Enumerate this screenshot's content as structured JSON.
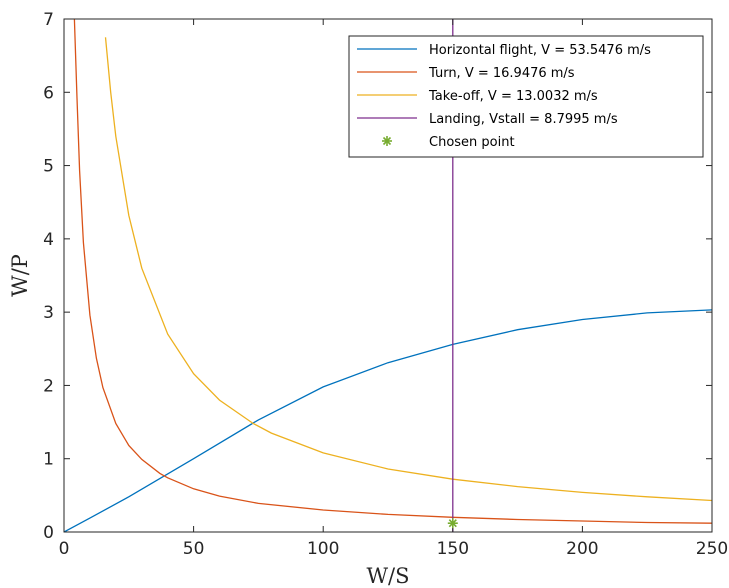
{
  "chart_data": {
    "type": "line",
    "xlabel": "W/S",
    "ylabel": "W/P",
    "xlim": [
      0,
      250
    ],
    "ylim": [
      0,
      7
    ],
    "xticks": [
      0,
      50,
      100,
      150,
      200,
      250
    ],
    "yticks": [
      0,
      1,
      2,
      3,
      4,
      5,
      6,
      7
    ],
    "grid": false,
    "legend_position": "top-right",
    "series": [
      {
        "name": "Horizontal flight, V = 53.5476 m/s",
        "color": "#0072BD",
        "kind": "line",
        "x": [
          0,
          10,
          25,
          50,
          75,
          100,
          125,
          150,
          175,
          200,
          225,
          250
        ],
        "y": [
          0.0,
          0.19,
          0.48,
          1.0,
          1.53,
          1.98,
          2.31,
          2.56,
          2.76,
          2.9,
          2.99,
          3.03
        ]
      },
      {
        "name": "Turn, V = 16.9476 m/s",
        "color": "#D95319",
        "kind": "line",
        "x": [
          4,
          5,
          6,
          7.5,
          10,
          12.5,
          15,
          20,
          25,
          30,
          37,
          40,
          50,
          60,
          75,
          100,
          125,
          150,
          175,
          200,
          225,
          250
        ],
        "y": [
          7.0,
          5.92,
          4.93,
          3.95,
          2.96,
          2.37,
          1.97,
          1.48,
          1.18,
          0.99,
          0.8,
          0.74,
          0.59,
          0.49,
          0.39,
          0.3,
          0.24,
          0.2,
          0.17,
          0.15,
          0.13,
          0.12
        ]
      },
      {
        "name": "Take-off, V = 13.0032 m/s",
        "color": "#EDB120",
        "kind": "line",
        "x": [
          16,
          18,
          20,
          25,
          30,
          40,
          50,
          60,
          73,
          80,
          100,
          125,
          150,
          175,
          200,
          225,
          250
        ],
        "y": [
          6.75,
          6.0,
          5.4,
          4.32,
          3.6,
          2.7,
          2.16,
          1.8,
          1.48,
          1.35,
          1.08,
          0.86,
          0.72,
          0.62,
          0.54,
          0.48,
          0.43
        ]
      },
      {
        "name": "Landing, Vstall = 8.7995 m/s",
        "color": "#7E2F8E",
        "kind": "vertical",
        "x": [
          150,
          150
        ],
        "y": [
          0,
          7
        ]
      },
      {
        "name": "Chosen point",
        "color": "#77AC30",
        "kind": "marker",
        "x": [
          150
        ],
        "y": [
          0.12
        ]
      }
    ]
  }
}
